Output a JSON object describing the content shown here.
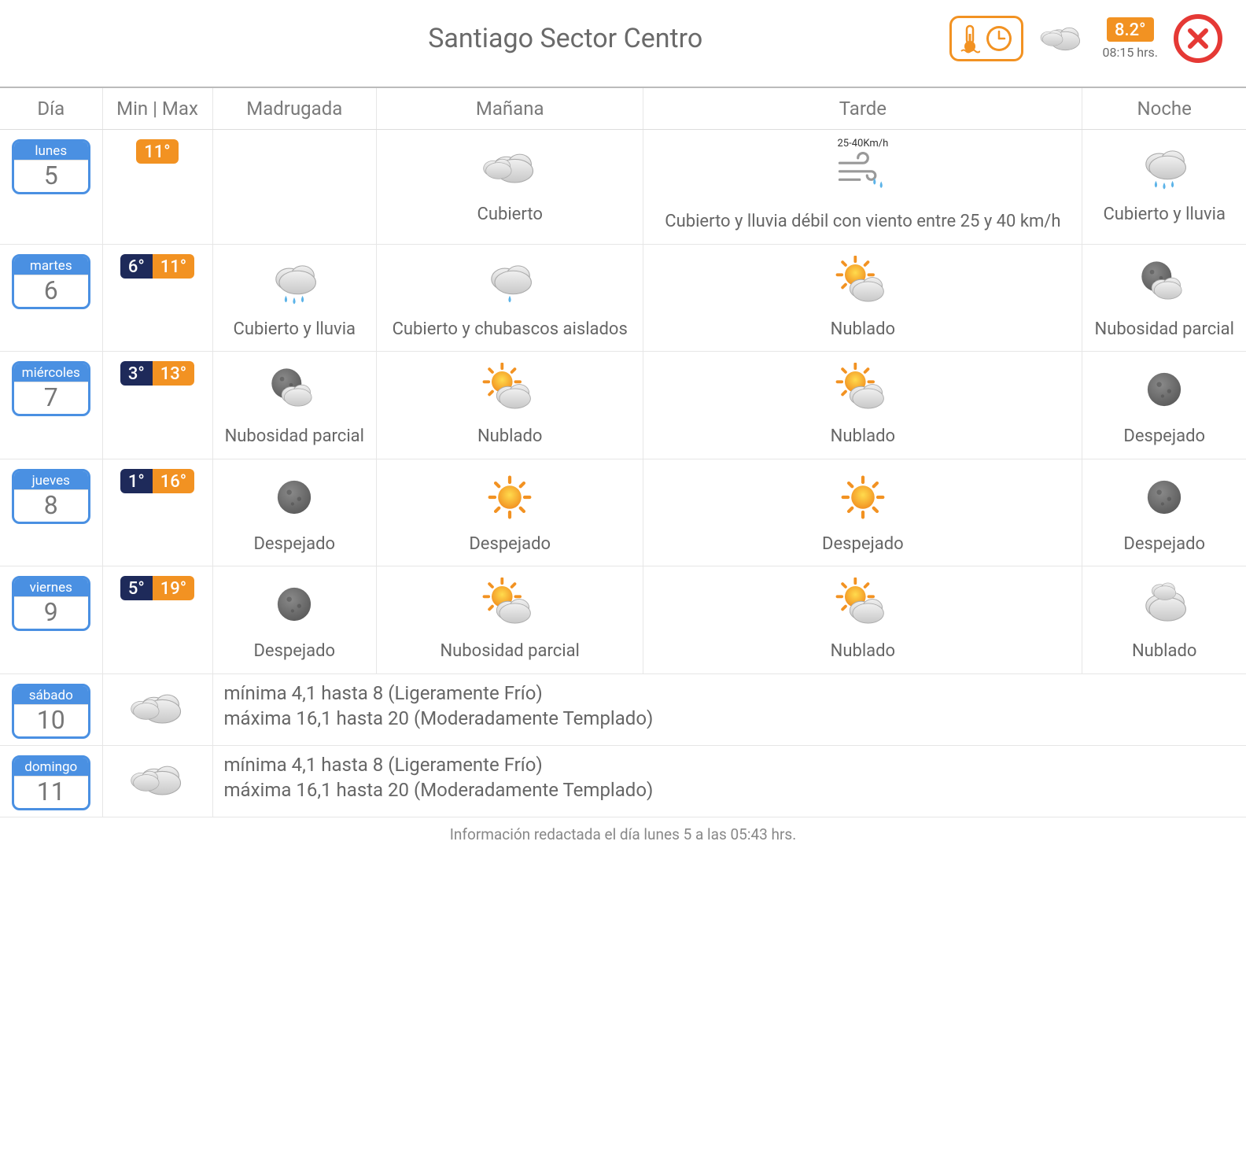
{
  "location_title": "Santiago Sector Centro",
  "current": {
    "temp": "8.2°",
    "time": "08:15 hrs.",
    "icon": "cloudy"
  },
  "columns": [
    "Día",
    "Min | Max",
    "Madrugada",
    "Mañana",
    "Tarde",
    "Noche"
  ],
  "colors": {
    "accent_orange": "#f29222",
    "day_blue": "#4a90e2",
    "min_bg": "#1e2a5a",
    "close_red": "#e53935",
    "text_gray": "#6a6a6a"
  },
  "days": [
    {
      "dayname": "lunes",
      "daynum": "5",
      "min": null,
      "max": "11°",
      "periods": [
        {
          "icon": null,
          "label": ""
        },
        {
          "icon": "cloudy",
          "label": "Cubierto"
        },
        {
          "icon": "wind-rain",
          "label": "Cubierto y lluvia débil con viento entre 25 y 40 km/h",
          "wind": "25-40Km/h"
        },
        {
          "icon": "cloud-rain",
          "label": "Cubierto y lluvia"
        }
      ]
    },
    {
      "dayname": "martes",
      "daynum": "6",
      "min": "6°",
      "max": "11°",
      "periods": [
        {
          "icon": "cloud-rain",
          "label": "Cubierto y lluvia"
        },
        {
          "icon": "cloud-drizzle",
          "label": "Cubierto y chubascos aislados"
        },
        {
          "icon": "sun-cloud",
          "label": "Nublado"
        },
        {
          "icon": "moon-cloud",
          "label": "Nubosidad parcial"
        }
      ]
    },
    {
      "dayname": "miércoles",
      "daynum": "7",
      "min": "3°",
      "max": "13°",
      "periods": [
        {
          "icon": "moon-cloud",
          "label": "Nubosidad parcial"
        },
        {
          "icon": "sun-cloud",
          "label": "Nublado"
        },
        {
          "icon": "sun-cloud",
          "label": "Nublado"
        },
        {
          "icon": "moon-clear",
          "label": "Despejado"
        }
      ]
    },
    {
      "dayname": "jueves",
      "daynum": "8",
      "min": "1°",
      "max": "16°",
      "periods": [
        {
          "icon": "moon-clear",
          "label": "Despejado"
        },
        {
          "icon": "sun",
          "label": "Despejado"
        },
        {
          "icon": "sun",
          "label": "Despejado"
        },
        {
          "icon": "moon-clear",
          "label": "Despejado"
        }
      ]
    },
    {
      "dayname": "viernes",
      "daynum": "9",
      "min": "5°",
      "max": "19°",
      "periods": [
        {
          "icon": "moon-clear",
          "label": "Despejado"
        },
        {
          "icon": "sun-cloud",
          "label": "Nubosidad parcial"
        },
        {
          "icon": "sun-cloud",
          "label": "Nublado"
        },
        {
          "icon": "cloud-night",
          "label": "Nublado"
        }
      ]
    }
  ],
  "summary_days": [
    {
      "dayname": "sábado",
      "daynum": "10",
      "icon": "cloudy",
      "line1": "mínima 4,1 hasta 8 (Ligeramente Frío)",
      "line2": "máxima 16,1 hasta 20 (Moderadamente Templado)"
    },
    {
      "dayname": "domingo",
      "daynum": "11",
      "icon": "cloudy",
      "line1": "mínima 4,1 hasta 8 (Ligeramente Frío)",
      "line2": "máxima 16,1 hasta 20 (Moderadamente Templado)"
    }
  ],
  "footer": "Información redactada el día lunes 5 a las 05:43 hrs."
}
